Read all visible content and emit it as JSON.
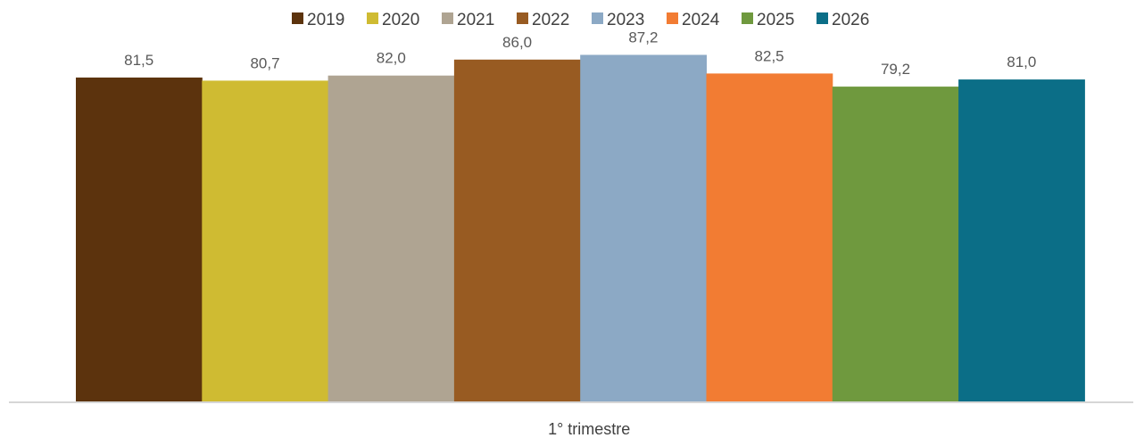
{
  "chart_data": {
    "type": "bar",
    "categories": [
      "1° trimestre"
    ],
    "series": [
      {
        "name": "2019",
        "values": [
          81.5
        ],
        "label": "81,5",
        "color": "#5c330d"
      },
      {
        "name": "2020",
        "values": [
          80.7
        ],
        "label": "80,7",
        "color": "#cfbb32"
      },
      {
        "name": "2021",
        "values": [
          82.0
        ],
        "label": "82,0",
        "color": "#afa492"
      },
      {
        "name": "2022",
        "values": [
          86.0
        ],
        "label": "86,0",
        "color": "#985b22"
      },
      {
        "name": "2023",
        "values": [
          87.2
        ],
        "label": "87,2",
        "color": "#8ca9c5"
      },
      {
        "name": "2024",
        "values": [
          82.5
        ],
        "label": "82,5",
        "color": "#f27c33"
      },
      {
        "name": "2025",
        "values": [
          79.2
        ],
        "label": "79,2",
        "color": "#6f993e"
      },
      {
        "name": "2026",
        "values": [
          81.0
        ],
        "label": "81,0",
        "color": "#0b6e87"
      }
    ],
    "title": "",
    "xlabel": "",
    "ylabel": "",
    "ylim": [
      0,
      101
    ],
    "grid": false,
    "legend_position": "top-center",
    "data_labels": true
  }
}
